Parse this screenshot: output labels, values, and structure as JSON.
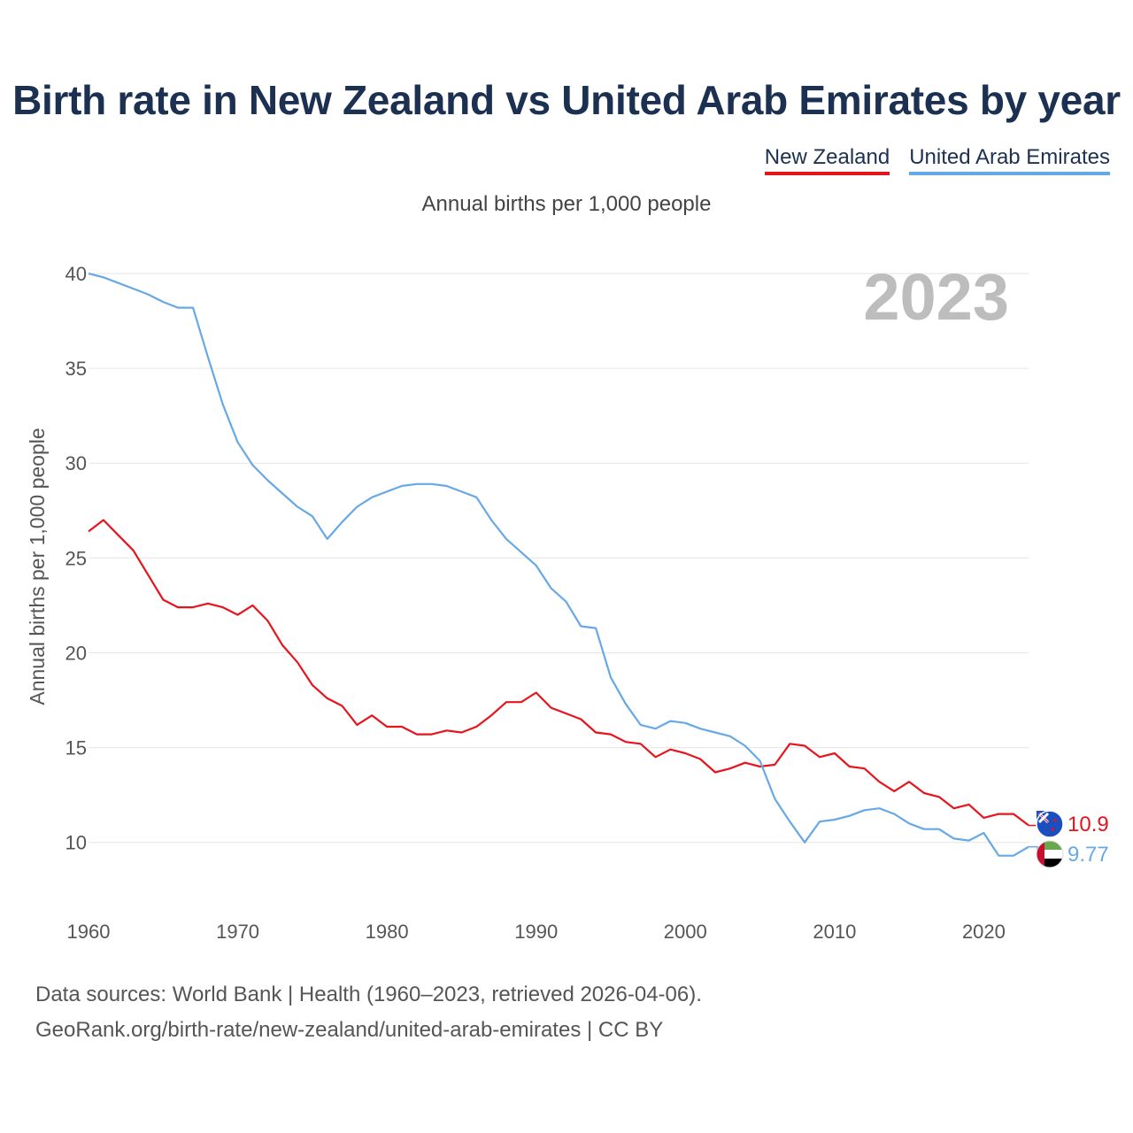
{
  "title": "Birth rate in New Zealand vs United Arab Emirates by year",
  "subtitle": "Annual births per 1,000 people",
  "legend": {
    "nz": "New Zealand",
    "uae": "United Arab Emirates"
  },
  "year_badge": "2023",
  "colors": {
    "nz": "#e8141c",
    "uae": "#67a8e6",
    "title": "#1c3152",
    "grid": "#e6e6e6",
    "badge": "#bdbdbd"
  },
  "footer": {
    "line1": "Data sources: World Bank | Health (1960–2023, retrieved 2026-04-06).",
    "line2": "GeoRank.org/birth-rate/new-zealand/united-arab-emirates | CC BY"
  },
  "chart_data": {
    "type": "line",
    "title": "Birth rate in New Zealand vs United Arab Emirates by year",
    "xlabel": "",
    "ylabel": "Annual births per 1,000 people",
    "xlim": [
      1960,
      2023
    ],
    "ylim": [
      7,
      40
    ],
    "yticks": [
      10,
      15,
      20,
      25,
      30,
      35,
      40
    ],
    "xticks": [
      1960,
      1970,
      1980,
      1990,
      2000,
      2010,
      2020
    ],
    "grid": true,
    "legend_position": "top-right",
    "x": [
      1960,
      1961,
      1962,
      1963,
      1964,
      1965,
      1966,
      1967,
      1968,
      1969,
      1970,
      1971,
      1972,
      1973,
      1974,
      1975,
      1976,
      1977,
      1978,
      1979,
      1980,
      1981,
      1982,
      1983,
      1984,
      1985,
      1986,
      1987,
      1988,
      1989,
      1990,
      1991,
      1992,
      1993,
      1994,
      1995,
      1996,
      1997,
      1998,
      1999,
      2000,
      2001,
      2002,
      2003,
      2004,
      2005,
      2006,
      2007,
      2008,
      2009,
      2010,
      2011,
      2012,
      2013,
      2014,
      2015,
      2016,
      2017,
      2018,
      2019,
      2020,
      2021,
      2022,
      2023
    ],
    "series": [
      {
        "name": "New Zealand",
        "key": "nz",
        "end_label": "10.9",
        "values": [
          26.4,
          27.0,
          26.2,
          25.4,
          24.1,
          22.8,
          22.4,
          22.4,
          22.6,
          22.4,
          22.0,
          22.5,
          21.7,
          20.4,
          19.5,
          18.3,
          17.6,
          17.2,
          16.2,
          16.7,
          16.1,
          16.1,
          15.7,
          15.7,
          15.9,
          15.8,
          16.1,
          16.7,
          17.4,
          17.4,
          17.9,
          17.1,
          16.8,
          16.5,
          15.8,
          15.7,
          15.3,
          15.2,
          14.5,
          14.9,
          14.7,
          14.4,
          13.7,
          13.9,
          14.2,
          14.0,
          14.1,
          15.2,
          15.1,
          14.5,
          14.7,
          14.0,
          13.9,
          13.2,
          12.7,
          13.2,
          12.6,
          12.4,
          11.8,
          12.0,
          11.3,
          11.5,
          11.5,
          10.9
        ]
      },
      {
        "name": "United Arab Emirates",
        "key": "uae",
        "end_label": "9.77",
        "values": [
          40.0,
          39.8,
          39.5,
          39.2,
          38.9,
          38.5,
          38.2,
          38.2,
          35.6,
          33.1,
          31.1,
          29.9,
          29.1,
          28.4,
          27.7,
          27.2,
          26.0,
          26.9,
          27.7,
          28.2,
          28.5,
          28.8,
          28.9,
          28.9,
          28.8,
          28.5,
          28.2,
          27.0,
          26.0,
          25.3,
          24.6,
          23.4,
          22.7,
          21.4,
          21.3,
          18.7,
          17.3,
          16.2,
          16.0,
          16.4,
          16.3,
          16.0,
          15.8,
          15.6,
          15.1,
          14.3,
          12.3,
          11.1,
          10.0,
          11.1,
          11.2,
          11.4,
          11.7,
          11.8,
          11.5,
          11.0,
          10.7,
          10.7,
          10.2,
          10.1,
          10.5,
          9.3,
          9.3,
          9.77
        ]
      }
    ]
  }
}
